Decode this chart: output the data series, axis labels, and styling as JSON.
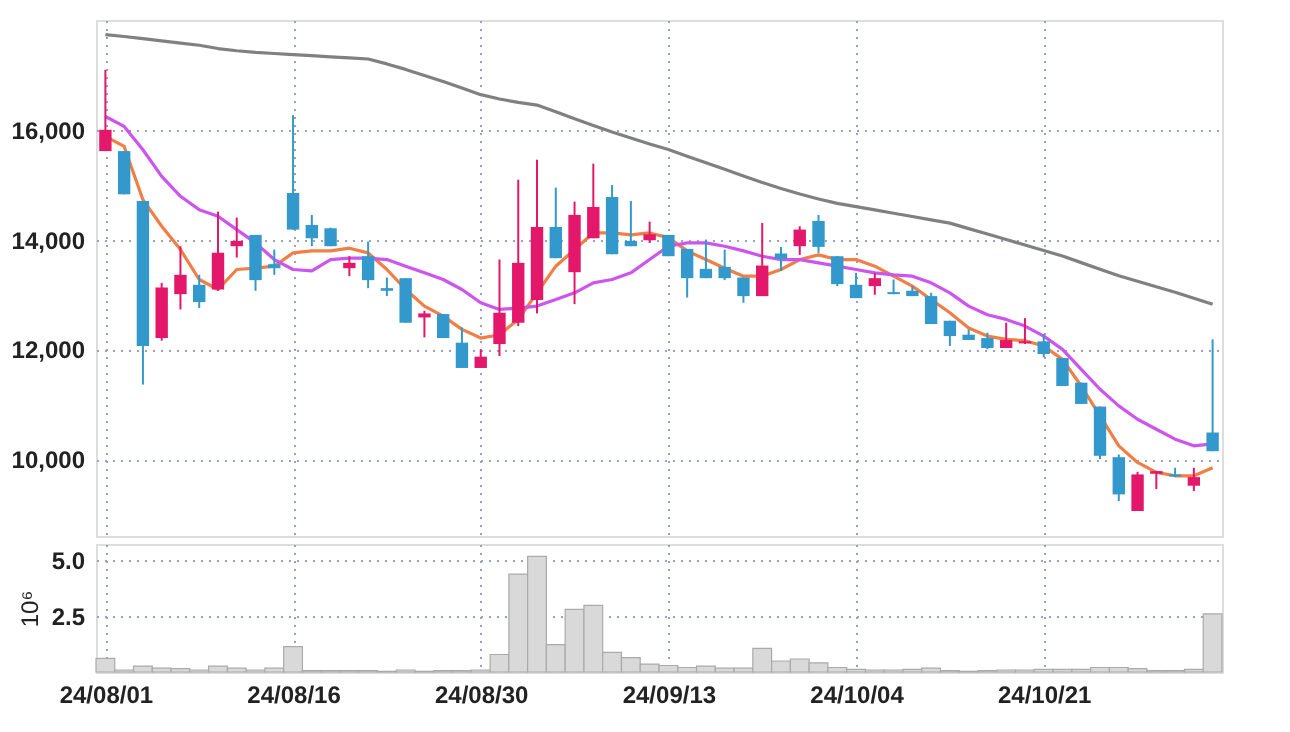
{
  "chart_data": [
    {
      "type": "candlestick",
      "categories": [
        null,
        null,
        null,
        null,
        null,
        null,
        null,
        null,
        null,
        null,
        null,
        null,
        null,
        null,
        null,
        null,
        null,
        null,
        null,
        null,
        null,
        null,
        null,
        null,
        null,
        null,
        null,
        null,
        null,
        null,
        null,
        null,
        null,
        null,
        null,
        null,
        null,
        null,
        null,
        null,
        null,
        null,
        null,
        null,
        null,
        null,
        null,
        null,
        null,
        null,
        null,
        null,
        null,
        null,
        null,
        null,
        null,
        null,
        null,
        null
      ],
      "ohlc": [
        [
          15612,
          17091,
          15612,
          16000
        ],
        [
          15612,
          15612,
          14824,
          14824
        ],
        [
          14703,
          14703,
          11358,
          12061
        ],
        [
          12206,
          13212,
          12158,
          13127
        ],
        [
          13006,
          13879,
          12727,
          13358
        ],
        [
          13176,
          13358,
          12752,
          12861
        ],
        [
          13091,
          14509,
          13067,
          13758
        ],
        [
          13879,
          14400,
          13673,
          13976
        ],
        [
          14085,
          14085,
          13067,
          13261
        ],
        [
          13552,
          13818,
          13358,
          13479
        ],
        [
          14849,
          16267,
          14182,
          14182
        ],
        [
          14267,
          14449,
          13879,
          14024
        ],
        [
          14206,
          14218,
          13879,
          13879
        ],
        [
          13479,
          13697,
          13333,
          13576
        ],
        [
          13697,
          13964,
          13115,
          13261
        ],
        [
          13115,
          13309,
          12970,
          13067
        ],
        [
          13297,
          13297,
          12485,
          12485
        ],
        [
          12582,
          12703,
          12218,
          12655
        ],
        [
          12643,
          12643,
          12206,
          12206
        ],
        [
          12122,
          12400,
          11661,
          11661
        ],
        [
          11661,
          12000,
          11661,
          11867
        ],
        [
          12097,
          13637,
          11879,
          12667
        ],
        [
          12485,
          15091,
          12424,
          13576
        ],
        [
          12897,
          15455,
          12655,
          14230
        ],
        [
          14230,
          14945,
          13661,
          13661
        ],
        [
          13406,
          14691,
          12824,
          14449
        ],
        [
          14024,
          15382,
          14024,
          14594
        ],
        [
          14776,
          14994,
          13733,
          13733
        ],
        [
          13976,
          14703,
          13879,
          13879
        ],
        [
          13988,
          14327,
          13939,
          14097
        ],
        [
          14085,
          14085,
          13697,
          13697
        ],
        [
          13830,
          13830,
          12945,
          13297
        ],
        [
          13467,
          14000,
          13297,
          13297
        ],
        [
          13503,
          13818,
          13261,
          13297
        ],
        [
          13309,
          13309,
          12848,
          12970
        ],
        [
          12970,
          14303,
          12970,
          13527
        ],
        [
          13746,
          13867,
          13430,
          13648
        ],
        [
          13879,
          14242,
          13721,
          14182
        ],
        [
          14339,
          14449,
          13758,
          13867
        ],
        [
          13697,
          13697,
          13152,
          13188
        ],
        [
          13176,
          13394,
          12933,
          12933
        ],
        [
          13152,
          13394,
          12994,
          13297
        ],
        [
          13043,
          13273,
          13006,
          13006
        ],
        [
          13067,
          13152,
          12970,
          12970
        ],
        [
          12970,
          13030,
          12461,
          12461
        ],
        [
          12521,
          12521,
          12061,
          12242
        ],
        [
          12267,
          12364,
          12170,
          12170
        ],
        [
          12206,
          12303,
          12000,
          12024
        ],
        [
          12024,
          12485,
          12024,
          12170
        ],
        [
          12109,
          12570,
          12097,
          12146
        ],
        [
          12146,
          12279,
          11855,
          11915
        ],
        [
          11842,
          11842,
          11333,
          11333
        ],
        [
          11394,
          11394,
          11006,
          11006
        ],
        [
          10958,
          10958,
          10000,
          10061
        ],
        [
          10036,
          10085,
          9237,
          9358
        ],
        [
          9055,
          9770,
          9055,
          9722
        ],
        [
          9734,
          9782,
          9455,
          9782
        ],
        [
          9722,
          9843,
          9673,
          9685
        ],
        [
          9516,
          9843,
          9418,
          9673
        ],
        [
          10485,
          12182,
          10145,
          10145
        ]
      ],
      "colors": [
        "#e4186a",
        "#3399cc",
        "#3399cc",
        "#e4186a",
        "#e4186a",
        "#3399cc",
        "#e4186a",
        "#e4186a",
        "#3399cc",
        "#3399cc",
        "#3399cc",
        "#3399cc",
        "#3399cc",
        "#e4186a",
        "#3399cc",
        "#3399cc",
        "#3399cc",
        "#e4186a",
        "#3399cc",
        "#3399cc",
        "#e4186a",
        "#e4186a",
        "#e4186a",
        "#e4186a",
        "#3399cc",
        "#e4186a",
        "#e4186a",
        "#3399cc",
        "#3399cc",
        "#e4186a",
        "#3399cc",
        "#3399cc",
        "#3399cc",
        "#3399cc",
        "#3399cc",
        "#e4186a",
        "#3399cc",
        "#e4186a",
        "#3399cc",
        "#3399cc",
        "#3399cc",
        "#e4186a",
        "#3399cc",
        "#3399cc",
        "#3399cc",
        "#3399cc",
        "#3399cc",
        "#3399cc",
        "#e4186a",
        "#e4186a",
        "#3399cc",
        "#3399cc",
        "#3399cc",
        "#3399cc",
        "#3399cc",
        "#e4186a",
        "#e4186a",
        "#3399cc",
        "#e4186a",
        "#3399cc"
      ],
      "series": [
        {
          "type": "line",
          "color": "#f07f45",
          "values": [
            15879,
            15697,
            14727,
            14242,
            13818,
            13273,
            13091,
            13455,
            13479,
            13515,
            13758,
            13794,
            13794,
            13843,
            13758,
            13455,
            13091,
            12788,
            12606,
            12364,
            12206,
            12267,
            12546,
            13030,
            13515,
            13818,
            14121,
            14121,
            14085,
            14121,
            14036,
            13794,
            13636,
            13479,
            13333,
            13333,
            13455,
            13636,
            13721,
            13636,
            13636,
            13515,
            13333,
            13152,
            12909,
            12667,
            12388,
            12242,
            12182,
            12158,
            12061,
            11818,
            11333,
            10788,
            10242,
            9940,
            9758,
            9697,
            9697,
            9843
          ]
        },
        {
          "type": "line",
          "color": "#cc55ee",
          "values": [
            16242,
            16061,
            15636,
            15152,
            14788,
            14545,
            14424,
            14182,
            13939,
            13636,
            13455,
            13430,
            13636,
            13661,
            13661,
            13636,
            13515,
            13394,
            13273,
            13091,
            12848,
            12727,
            12752,
            12788,
            12909,
            13030,
            13212,
            13273,
            13394,
            13636,
            13879,
            13939,
            13939,
            13879,
            13794,
            13697,
            13636,
            13636,
            13576,
            13515,
            13455,
            13394,
            13358,
            13333,
            13212,
            13030,
            12788,
            12630,
            12546,
            12424,
            12242,
            12000,
            11636,
            11273,
            10970,
            10727,
            10545,
            10364,
            10242,
            10279
          ]
        },
        {
          "type": "line",
          "color": "#808080",
          "values": [
            17733,
            17700,
            17660,
            17620,
            17580,
            17540,
            17480,
            17440,
            17410,
            17390,
            17370,
            17350,
            17330,
            17310,
            17290,
            17200,
            17100,
            16990,
            16880,
            16760,
            16640,
            16560,
            16500,
            16450,
            16330,
            16200,
            16080,
            15960,
            15850,
            15740,
            15640,
            15520,
            15400,
            15280,
            15160,
            15040,
            14930,
            14830,
            14740,
            14660,
            14600,
            14540,
            14480,
            14420,
            14360,
            14300,
            14200,
            14100,
            14000,
            13900,
            13800,
            13700,
            13580,
            13460,
            13340,
            13240,
            13140,
            13040,
            12930,
            12820
          ]
        }
      ],
      "ylim": [
        8600,
        18000
      ],
      "yticks": [
        {
          "value": 10000,
          "label": "10,000"
        },
        {
          "value": 12000,
          "label": "12,000"
        },
        {
          "value": 14000,
          "label": "14,000"
        },
        {
          "value": 16000,
          "label": "16,000"
        }
      ],
      "grid": true,
      "tick_labels": "y"
    },
    {
      "type": "bar",
      "categories": [
        "24/08/01",
        null,
        null,
        null,
        null,
        null,
        null,
        null,
        null,
        null,
        "24/08/16",
        null,
        null,
        null,
        null,
        null,
        null,
        null,
        null,
        null,
        "24/08/30",
        null,
        null,
        null,
        null,
        null,
        null,
        null,
        null,
        null,
        "24/09/13",
        null,
        null,
        null,
        null,
        null,
        null,
        null,
        null,
        null,
        "24/10/04",
        null,
        null,
        null,
        null,
        null,
        null,
        null,
        null,
        null,
        "24/10/21",
        null,
        null,
        null,
        null,
        null,
        null,
        null,
        null,
        null
      ],
      "values": [
        0.61,
        0.09,
        0.26,
        0.17,
        0.15,
        0.09,
        0.26,
        0.17,
        0.09,
        0.17,
        1.13,
        0.06,
        0.06,
        0.06,
        0.06,
        0.03,
        0.09,
        0.03,
        0.06,
        0.06,
        0.09,
        0.78,
        4.36,
        5.15,
        1.22,
        2.79,
        2.97,
        0.87,
        0.64,
        0.35,
        0.29,
        0.2,
        0.26,
        0.17,
        0.17,
        1.05,
        0.49,
        0.58,
        0.41,
        0.2,
        0.12,
        0.09,
        0.09,
        0.12,
        0.17,
        0.06,
        0.03,
        0.06,
        0.09,
        0.09,
        0.12,
        0.12,
        0.12,
        0.2,
        0.2,
        0.15,
        0.06,
        0.06,
        0.12,
        2.59
      ],
      "color": "#d9d9d9",
      "ylabel": "10⁶",
      "ylim": [
        0,
        5.7
      ],
      "yticks": [
        2.5,
        {
          "value": 5,
          "label": "5.0"
        }
      ],
      "grid": true
    }
  ]
}
